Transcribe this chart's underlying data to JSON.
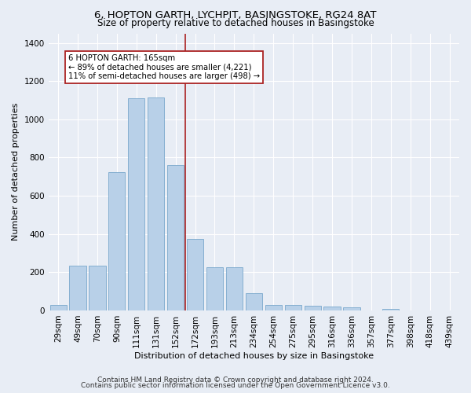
{
  "title1": "6, HOPTON GARTH, LYCHPIT, BASINGSTOKE, RG24 8AT",
  "title2": "Size of property relative to detached houses in Basingstoke",
  "xlabel": "Distribution of detached houses by size in Basingstoke",
  "ylabel": "Number of detached properties",
  "categories": [
    "29sqm",
    "49sqm",
    "70sqm",
    "90sqm",
    "111sqm",
    "131sqm",
    "152sqm",
    "172sqm",
    "193sqm",
    "213sqm",
    "234sqm",
    "254sqm",
    "275sqm",
    "295sqm",
    "316sqm",
    "336sqm",
    "357sqm",
    "377sqm",
    "398sqm",
    "418sqm",
    "439sqm"
  ],
  "values": [
    30,
    235,
    235,
    725,
    1110,
    1115,
    760,
    375,
    225,
    225,
    90,
    30,
    30,
    25,
    20,
    15,
    0,
    10,
    0,
    0,
    0
  ],
  "bar_color": "#b8d0e8",
  "bar_edge_color": "#7aa8cc",
  "vline_color": "#aa2222",
  "annotation_text": "6 HOPTON GARTH: 165sqm\n← 89% of detached houses are smaller (4,221)\n11% of semi-detached houses are larger (498) →",
  "annotation_box_color": "#ffffff",
  "annotation_box_edge": "#aa2222",
  "ylim": [
    0,
    1450
  ],
  "yticks": [
    0,
    200,
    400,
    600,
    800,
    1000,
    1200,
    1400
  ],
  "footer1": "Contains HM Land Registry data © Crown copyright and database right 2024.",
  "footer2": "Contains public sector information licensed under the Open Government Licence v3.0.",
  "bg_color": "#e8edf5",
  "plot_bg_color": "#e8edf5",
  "grid_color": "#ffffff",
  "title1_fontsize": 9.5,
  "title2_fontsize": 8.5,
  "xlabel_fontsize": 8,
  "ylabel_fontsize": 8,
  "tick_fontsize": 7.5,
  "footer_fontsize": 6.5,
  "vline_idx": 6.5
}
